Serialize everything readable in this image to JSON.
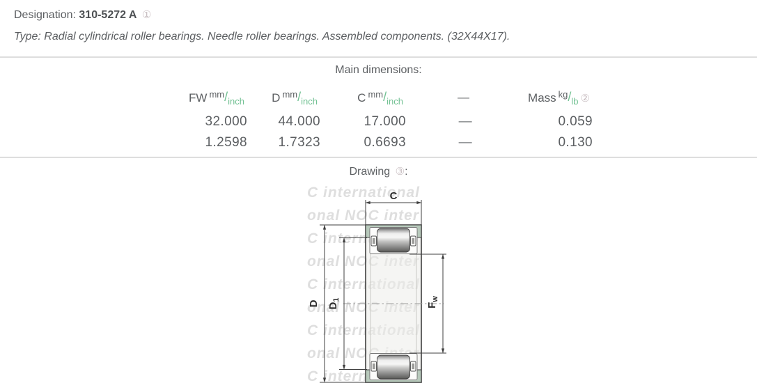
{
  "header": {
    "designation_label": "Designation:",
    "designation_value": "310-5272 A",
    "designation_footnote": "①",
    "type_label": "Type:",
    "type_text": "Radial cylindrical roller bearings. Needle roller bearings. Assembled components. (32X44X17)."
  },
  "dimensions": {
    "title": "Main dimensions:",
    "columns": [
      {
        "name": "FW",
        "unit_top": "mm",
        "unit_bottom": "inch"
      },
      {
        "name": "D",
        "unit_top": "mm",
        "unit_bottom": "inch"
      },
      {
        "name": "C",
        "unit_top": "mm",
        "unit_bottom": "inch"
      },
      {
        "name": "—"
      },
      {
        "name": "Mass",
        "unit_top": "kg",
        "unit_bottom": "lb",
        "footnote": "②"
      }
    ],
    "metric_values": [
      "32.000",
      "44.000",
      "17.000",
      "—",
      "0.059"
    ],
    "imperial_values": [
      "1.2598",
      "1.7323",
      "0.6693",
      "—",
      "0.130"
    ]
  },
  "drawing": {
    "title": "Drawing",
    "footnote": "③",
    "suffix": ":",
    "labels": {
      "c": "C",
      "d": "D",
      "d1_base": "D",
      "d1_sub": "1",
      "fw_base": "F",
      "fw_sub": "w"
    },
    "watermark_lines": [
      "C international",
      "onal NOC inter",
      "C international",
      "onal NOC inter",
      "C international",
      "onal NOC inter",
      "C international",
      "onal NOC inter",
      "C international"
    ]
  },
  "colors": {
    "accent_green": "#72c193",
    "text_gray": "#5c5f62",
    "shell_green": "#b7c9bb",
    "separator": "#dedede",
    "footnote_gray": "#c9bfc2"
  }
}
